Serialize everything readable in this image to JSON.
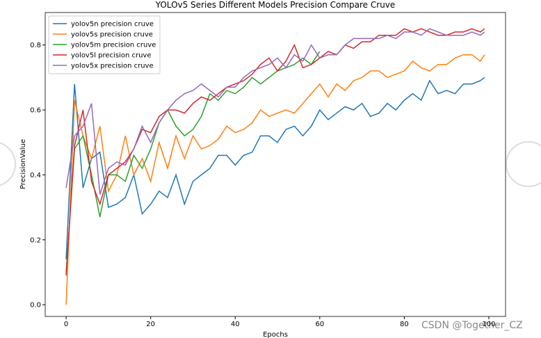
{
  "chart_data": {
    "type": "line",
    "title": "YOLOv5 Series Different Models Precision Compare Cruve",
    "xlabel": "Epochs",
    "ylabel": "PrecisionValue",
    "watermark": "CSDN @Together_CZ",
    "x": [
      0,
      2,
      4,
      6,
      8,
      10,
      12,
      14,
      16,
      18,
      20,
      22,
      24,
      26,
      28,
      30,
      32,
      34,
      36,
      38,
      40,
      42,
      44,
      46,
      48,
      50,
      52,
      54,
      56,
      58,
      60,
      62,
      64,
      66,
      68,
      70,
      72,
      74,
      76,
      78,
      80,
      82,
      84,
      86,
      88,
      90,
      92,
      94,
      96,
      98,
      99
    ],
    "series": [
      {
        "name": "yolov5n precision cruve",
        "color": "#1f77b4",
        "values": [
          0.14,
          0.68,
          0.36,
          0.45,
          0.47,
          0.3,
          0.31,
          0.33,
          0.4,
          0.28,
          0.31,
          0.35,
          0.33,
          0.4,
          0.31,
          0.38,
          0.4,
          0.42,
          0.46,
          0.46,
          0.43,
          0.46,
          0.47,
          0.52,
          0.52,
          0.5,
          0.54,
          0.55,
          0.52,
          0.55,
          0.6,
          0.57,
          0.59,
          0.61,
          0.6,
          0.62,
          0.58,
          0.59,
          0.62,
          0.6,
          0.63,
          0.65,
          0.63,
          0.69,
          0.65,
          0.66,
          0.65,
          0.68,
          0.68,
          0.69,
          0.7
        ]
      },
      {
        "name": "yolov5s precision cruve",
        "color": "#ff7f0e",
        "values": [
          0.0,
          0.63,
          0.52,
          0.45,
          0.55,
          0.35,
          0.4,
          0.52,
          0.4,
          0.45,
          0.38,
          0.5,
          0.42,
          0.52,
          0.45,
          0.52,
          0.48,
          0.49,
          0.51,
          0.55,
          0.53,
          0.54,
          0.56,
          0.6,
          0.58,
          0.59,
          0.6,
          0.59,
          0.62,
          0.65,
          0.68,
          0.64,
          0.68,
          0.66,
          0.69,
          0.7,
          0.72,
          0.72,
          0.7,
          0.71,
          0.72,
          0.75,
          0.73,
          0.72,
          0.74,
          0.74,
          0.76,
          0.77,
          0.77,
          0.75,
          0.77
        ]
      },
      {
        "name": "yolov5m precision cruve",
        "color": "#2ca02c",
        "values": [
          0.1,
          0.48,
          0.52,
          0.4,
          0.27,
          0.4,
          0.4,
          0.38,
          0.46,
          0.42,
          0.48,
          0.56,
          0.6,
          0.55,
          0.52,
          0.54,
          0.58,
          0.65,
          0.63,
          0.66,
          0.65,
          0.67,
          0.7,
          0.68,
          0.7,
          0.72,
          0.73,
          0.74,
          0.76,
          0.74,
          0.78,
          null,
          null,
          null,
          null,
          null,
          null,
          null,
          null,
          null,
          null,
          null,
          null,
          null,
          null,
          null,
          null,
          null,
          null,
          null,
          null
        ]
      },
      {
        "name": "yolov5l precision cruve",
        "color": "#d62728",
        "values": [
          0.09,
          0.49,
          0.6,
          0.38,
          0.31,
          0.4,
          0.42,
          0.44,
          0.48,
          0.54,
          0.53,
          0.58,
          0.6,
          0.6,
          0.59,
          0.62,
          0.64,
          0.63,
          0.65,
          0.67,
          0.68,
          0.69,
          0.71,
          0.74,
          0.76,
          0.72,
          0.75,
          0.8,
          0.73,
          0.74,
          0.76,
          0.78,
          0.77,
          0.8,
          0.79,
          0.81,
          0.81,
          0.83,
          0.83,
          0.83,
          0.85,
          0.84,
          0.85,
          0.84,
          0.83,
          0.83,
          0.84,
          0.84,
          0.85,
          0.84,
          0.85
        ]
      },
      {
        "name": "yolov5x precision cruve",
        "color": "#9467bd",
        "values": [
          0.36,
          0.52,
          0.55,
          0.62,
          0.34,
          0.42,
          0.44,
          0.43,
          0.48,
          0.55,
          0.5,
          0.56,
          0.6,
          0.63,
          0.65,
          0.66,
          0.68,
          0.66,
          0.64,
          0.67,
          0.67,
          0.7,
          0.72,
          0.73,
          0.74,
          0.76,
          0.73,
          0.77,
          0.75,
          0.8,
          0.76,
          0.77,
          0.77,
          0.8,
          0.82,
          0.82,
          0.82,
          0.82,
          0.83,
          0.82,
          0.84,
          0.84,
          0.83,
          0.85,
          0.84,
          0.83,
          0.83,
          0.83,
          0.84,
          0.83,
          0.84
        ]
      }
    ],
    "xlim": [
      -4.95,
      103.95
    ],
    "ylim": [
      -0.036,
      0.9
    ],
    "xticks": [
      0,
      20,
      40,
      60,
      80,
      100
    ],
    "yticks": [
      {
        "value": 0,
        "label": "0.0"
      },
      0.2,
      0.4,
      0.6,
      0.8
    ],
    "legend": "upper left"
  }
}
